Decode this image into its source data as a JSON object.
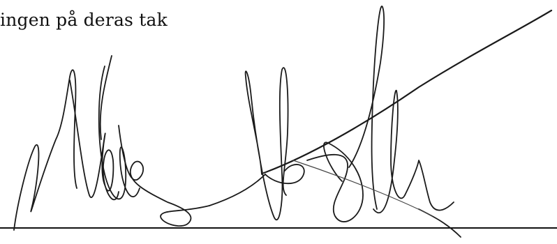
{
  "document": {
    "text_line": "ingen på deras tak"
  }
}
